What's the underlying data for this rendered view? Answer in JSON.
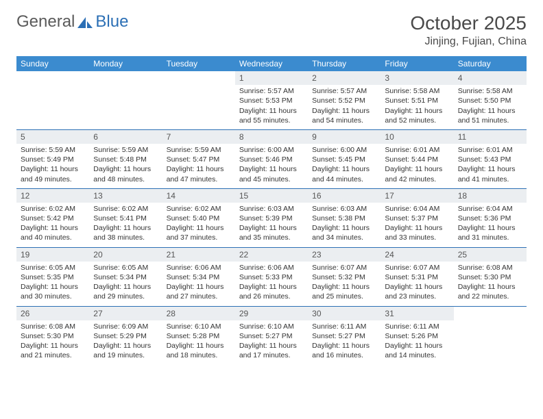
{
  "logo": {
    "word1": "General",
    "word2": "Blue"
  },
  "title": "October 2025",
  "location": "Jinjing, Fujian, China",
  "colors": {
    "header_bg": "#3b8bcf",
    "header_text": "#ffffff",
    "daynum_bg": "#ebeef1",
    "week_border": "#2b6fb5",
    "body_text": "#333333",
    "title_text": "#4a4a4a",
    "logo_gray": "#5a5a5a",
    "logo_blue": "#2b6fb5",
    "page_bg": "#ffffff"
  },
  "day_labels": [
    "Sunday",
    "Monday",
    "Tuesday",
    "Wednesday",
    "Thursday",
    "Friday",
    "Saturday"
  ],
  "weeks": [
    [
      {
        "n": "",
        "empty": true
      },
      {
        "n": "",
        "empty": true
      },
      {
        "n": "",
        "empty": true
      },
      {
        "n": "1",
        "sunrise": "Sunrise: 5:57 AM",
        "sunset": "Sunset: 5:53 PM",
        "daylight": "Daylight: 11 hours and 55 minutes."
      },
      {
        "n": "2",
        "sunrise": "Sunrise: 5:57 AM",
        "sunset": "Sunset: 5:52 PM",
        "daylight": "Daylight: 11 hours and 54 minutes."
      },
      {
        "n": "3",
        "sunrise": "Sunrise: 5:58 AM",
        "sunset": "Sunset: 5:51 PM",
        "daylight": "Daylight: 11 hours and 52 minutes."
      },
      {
        "n": "4",
        "sunrise": "Sunrise: 5:58 AM",
        "sunset": "Sunset: 5:50 PM",
        "daylight": "Daylight: 11 hours and 51 minutes."
      }
    ],
    [
      {
        "n": "5",
        "sunrise": "Sunrise: 5:59 AM",
        "sunset": "Sunset: 5:49 PM",
        "daylight": "Daylight: 11 hours and 49 minutes."
      },
      {
        "n": "6",
        "sunrise": "Sunrise: 5:59 AM",
        "sunset": "Sunset: 5:48 PM",
        "daylight": "Daylight: 11 hours and 48 minutes."
      },
      {
        "n": "7",
        "sunrise": "Sunrise: 5:59 AM",
        "sunset": "Sunset: 5:47 PM",
        "daylight": "Daylight: 11 hours and 47 minutes."
      },
      {
        "n": "8",
        "sunrise": "Sunrise: 6:00 AM",
        "sunset": "Sunset: 5:46 PM",
        "daylight": "Daylight: 11 hours and 45 minutes."
      },
      {
        "n": "9",
        "sunrise": "Sunrise: 6:00 AM",
        "sunset": "Sunset: 5:45 PM",
        "daylight": "Daylight: 11 hours and 44 minutes."
      },
      {
        "n": "10",
        "sunrise": "Sunrise: 6:01 AM",
        "sunset": "Sunset: 5:44 PM",
        "daylight": "Daylight: 11 hours and 42 minutes."
      },
      {
        "n": "11",
        "sunrise": "Sunrise: 6:01 AM",
        "sunset": "Sunset: 5:43 PM",
        "daylight": "Daylight: 11 hours and 41 minutes."
      }
    ],
    [
      {
        "n": "12",
        "sunrise": "Sunrise: 6:02 AM",
        "sunset": "Sunset: 5:42 PM",
        "daylight": "Daylight: 11 hours and 40 minutes."
      },
      {
        "n": "13",
        "sunrise": "Sunrise: 6:02 AM",
        "sunset": "Sunset: 5:41 PM",
        "daylight": "Daylight: 11 hours and 38 minutes."
      },
      {
        "n": "14",
        "sunrise": "Sunrise: 6:02 AM",
        "sunset": "Sunset: 5:40 PM",
        "daylight": "Daylight: 11 hours and 37 minutes."
      },
      {
        "n": "15",
        "sunrise": "Sunrise: 6:03 AM",
        "sunset": "Sunset: 5:39 PM",
        "daylight": "Daylight: 11 hours and 35 minutes."
      },
      {
        "n": "16",
        "sunrise": "Sunrise: 6:03 AM",
        "sunset": "Sunset: 5:38 PM",
        "daylight": "Daylight: 11 hours and 34 minutes."
      },
      {
        "n": "17",
        "sunrise": "Sunrise: 6:04 AM",
        "sunset": "Sunset: 5:37 PM",
        "daylight": "Daylight: 11 hours and 33 minutes."
      },
      {
        "n": "18",
        "sunrise": "Sunrise: 6:04 AM",
        "sunset": "Sunset: 5:36 PM",
        "daylight": "Daylight: 11 hours and 31 minutes."
      }
    ],
    [
      {
        "n": "19",
        "sunrise": "Sunrise: 6:05 AM",
        "sunset": "Sunset: 5:35 PM",
        "daylight": "Daylight: 11 hours and 30 minutes."
      },
      {
        "n": "20",
        "sunrise": "Sunrise: 6:05 AM",
        "sunset": "Sunset: 5:34 PM",
        "daylight": "Daylight: 11 hours and 29 minutes."
      },
      {
        "n": "21",
        "sunrise": "Sunrise: 6:06 AM",
        "sunset": "Sunset: 5:34 PM",
        "daylight": "Daylight: 11 hours and 27 minutes."
      },
      {
        "n": "22",
        "sunrise": "Sunrise: 6:06 AM",
        "sunset": "Sunset: 5:33 PM",
        "daylight": "Daylight: 11 hours and 26 minutes."
      },
      {
        "n": "23",
        "sunrise": "Sunrise: 6:07 AM",
        "sunset": "Sunset: 5:32 PM",
        "daylight": "Daylight: 11 hours and 25 minutes."
      },
      {
        "n": "24",
        "sunrise": "Sunrise: 6:07 AM",
        "sunset": "Sunset: 5:31 PM",
        "daylight": "Daylight: 11 hours and 23 minutes."
      },
      {
        "n": "25",
        "sunrise": "Sunrise: 6:08 AM",
        "sunset": "Sunset: 5:30 PM",
        "daylight": "Daylight: 11 hours and 22 minutes."
      }
    ],
    [
      {
        "n": "26",
        "sunrise": "Sunrise: 6:08 AM",
        "sunset": "Sunset: 5:30 PM",
        "daylight": "Daylight: 11 hours and 21 minutes."
      },
      {
        "n": "27",
        "sunrise": "Sunrise: 6:09 AM",
        "sunset": "Sunset: 5:29 PM",
        "daylight": "Daylight: 11 hours and 19 minutes."
      },
      {
        "n": "28",
        "sunrise": "Sunrise: 6:10 AM",
        "sunset": "Sunset: 5:28 PM",
        "daylight": "Daylight: 11 hours and 18 minutes."
      },
      {
        "n": "29",
        "sunrise": "Sunrise: 6:10 AM",
        "sunset": "Sunset: 5:27 PM",
        "daylight": "Daylight: 11 hours and 17 minutes."
      },
      {
        "n": "30",
        "sunrise": "Sunrise: 6:11 AM",
        "sunset": "Sunset: 5:27 PM",
        "daylight": "Daylight: 11 hours and 16 minutes."
      },
      {
        "n": "31",
        "sunrise": "Sunrise: 6:11 AM",
        "sunset": "Sunset: 5:26 PM",
        "daylight": "Daylight: 11 hours and 14 minutes."
      },
      {
        "n": "",
        "empty": true
      }
    ]
  ]
}
